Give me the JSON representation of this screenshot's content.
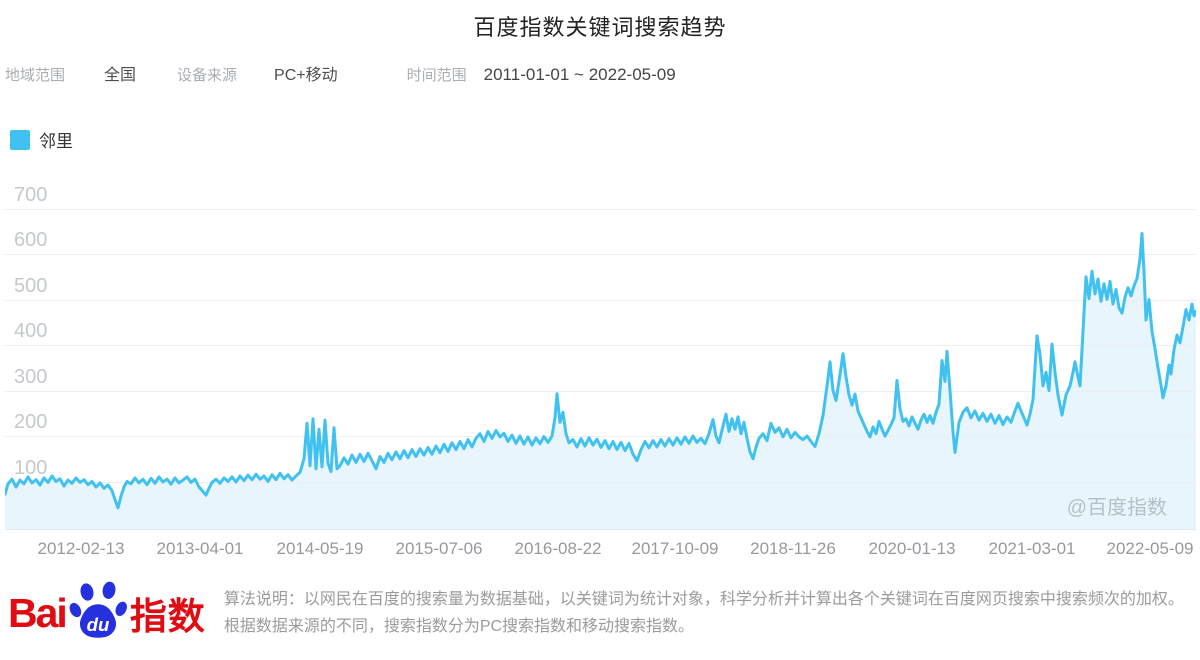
{
  "header": {
    "title": "百度指数关键词搜索趋势"
  },
  "filters": {
    "region_label": "地域范围",
    "region_value": "全国",
    "device_label": "设备来源",
    "device_value": "PC+移动",
    "time_label": "时间范围",
    "time_value": "2011-01-01 ~ 2022-05-09"
  },
  "legend": {
    "label": "邻里",
    "color": "#41C1F0"
  },
  "watermark": "@百度指数",
  "footer": {
    "logo_bai": "Bai",
    "logo_du": "du",
    "logo_suffix": "指数",
    "description": "算法说明：以网民在百度的搜索量为数据基础，以关键词为统计对象，科学分析并计算出各个关键词在百度网页搜索中搜索频次的加权。根据数据来源的不同，搜索指数分为PC搜索指数和移动搜索指数。"
  },
  "chart_data": {
    "type": "area",
    "title": "百度指数关键词搜索趋势",
    "series_name": "邻里",
    "x_axis": {
      "start": "2011-01-01",
      "end": "2022-05-09",
      "tick_labels": [
        "2012-02-13",
        "2013-04-01",
        "2014-05-19",
        "2015-07-06",
        "2016-08-22",
        "2017-10-09",
        "2018-11-26",
        "2020-01-13",
        "2021-03-01",
        "2022-05-09"
      ],
      "tick_x_units": [
        76,
        195,
        315,
        434,
        553,
        670,
        788,
        907,
        1027,
        1145
      ],
      "x_units_range": [
        0,
        1191
      ]
    },
    "y_axis": {
      "ticks": [
        700,
        600,
        500,
        400,
        300,
        200,
        100
      ],
      "min": 0,
      "max": 700,
      "grid": true
    },
    "colors": {
      "line": "#41C1F0",
      "fill": "#E8F5FC",
      "grid": "#EDEEF0"
    },
    "points": [
      [
        0,
        72
      ],
      [
        3,
        95
      ],
      [
        7,
        105
      ],
      [
        11,
        88
      ],
      [
        15,
        103
      ],
      [
        19,
        95
      ],
      [
        23,
        110
      ],
      [
        27,
        97
      ],
      [
        31,
        104
      ],
      [
        35,
        92
      ],
      [
        39,
        108
      ],
      [
        43,
        98
      ],
      [
        47,
        112
      ],
      [
        51,
        100
      ],
      [
        55,
        106
      ],
      [
        59,
        90
      ],
      [
        63,
        103
      ],
      [
        67,
        96
      ],
      [
        71,
        108
      ],
      [
        75,
        98
      ],
      [
        79,
        104
      ],
      [
        83,
        93
      ],
      [
        87,
        100
      ],
      [
        91,
        88
      ],
      [
        95,
        97
      ],
      [
        99,
        85
      ],
      [
        103,
        92
      ],
      [
        107,
        80
      ],
      [
        110,
        60
      ],
      [
        113,
        42
      ],
      [
        116,
        68
      ],
      [
        119,
        88
      ],
      [
        122,
        100
      ],
      [
        126,
        95
      ],
      [
        130,
        108
      ],
      [
        134,
        97
      ],
      [
        138,
        105
      ],
      [
        142,
        93
      ],
      [
        146,
        107
      ],
      [
        150,
        96
      ],
      [
        154,
        110
      ],
      [
        158,
        99
      ],
      [
        162,
        105
      ],
      [
        166,
        94
      ],
      [
        170,
        108
      ],
      [
        174,
        97
      ],
      [
        178,
        103
      ],
      [
        182,
        110
      ],
      [
        186,
        98
      ],
      [
        190,
        105
      ],
      [
        194,
        88
      ],
      [
        198,
        78
      ],
      [
        201,
        70
      ],
      [
        204,
        85
      ],
      [
        207,
        98
      ],
      [
        211,
        105
      ],
      [
        215,
        96
      ],
      [
        219,
        108
      ],
      [
        223,
        100
      ],
      [
        227,
        110
      ],
      [
        231,
        99
      ],
      [
        235,
        112
      ],
      [
        239,
        102
      ],
      [
        243,
        114
      ],
      [
        247,
        104
      ],
      [
        251,
        116
      ],
      [
        255,
        105
      ],
      [
        259,
        112
      ],
      [
        263,
        100
      ],
      [
        267,
        115
      ],
      [
        271,
        104
      ],
      [
        275,
        118
      ],
      [
        279,
        106
      ],
      [
        283,
        115
      ],
      [
        287,
        103
      ],
      [
        291,
        112
      ],
      [
        295,
        120
      ],
      [
        299,
        150
      ],
      [
        302,
        228
      ],
      [
        305,
        135
      ],
      [
        308,
        238
      ],
      [
        311,
        128
      ],
      [
        314,
        215
      ],
      [
        317,
        132
      ],
      [
        320,
        235
      ],
      [
        323,
        140
      ],
      [
        326,
        122
      ],
      [
        329,
        218
      ],
      [
        332,
        128
      ],
      [
        335,
        135
      ],
      [
        339,
        152
      ],
      [
        343,
        138
      ],
      [
        347,
        158
      ],
      [
        351,
        142
      ],
      [
        355,
        160
      ],
      [
        359,
        144
      ],
      [
        363,
        162
      ],
      [
        367,
        146
      ],
      [
        371,
        128
      ],
      [
        375,
        155
      ],
      [
        379,
        142
      ],
      [
        383,
        162
      ],
      [
        387,
        148
      ],
      [
        391,
        165
      ],
      [
        395,
        150
      ],
      [
        399,
        168
      ],
      [
        403,
        152
      ],
      [
        407,
        170
      ],
      [
        411,
        155
      ],
      [
        415,
        172
      ],
      [
        419,
        158
      ],
      [
        423,
        175
      ],
      [
        427,
        160
      ],
      [
        431,
        178
      ],
      [
        435,
        163
      ],
      [
        439,
        182
      ],
      [
        443,
        166
      ],
      [
        447,
        185
      ],
      [
        451,
        170
      ],
      [
        455,
        188
      ],
      [
        459,
        172
      ],
      [
        463,
        192
      ],
      [
        467,
        176
      ],
      [
        471,
        195
      ],
      [
        475,
        205
      ],
      [
        479,
        188
      ],
      [
        483,
        210
      ],
      [
        487,
        195
      ],
      [
        491,
        212
      ],
      [
        495,
        198
      ],
      [
        499,
        206
      ],
      [
        503,
        188
      ],
      [
        507,
        202
      ],
      [
        511,
        184
      ],
      [
        515,
        200
      ],
      [
        519,
        182
      ],
      [
        523,
        198
      ],
      [
        527,
        180
      ],
      [
        531,
        196
      ],
      [
        535,
        183
      ],
      [
        539,
        199
      ],
      [
        543,
        186
      ],
      [
        547,
        200
      ],
      [
        550,
        240
      ],
      [
        552,
        293
      ],
      [
        555,
        230
      ],
      [
        558,
        252
      ],
      [
        561,
        205
      ],
      [
        564,
        185
      ],
      [
        568,
        192
      ],
      [
        572,
        176
      ],
      [
        576,
        194
      ],
      [
        580,
        178
      ],
      [
        584,
        196
      ],
      [
        588,
        180
      ],
      [
        592,
        193
      ],
      [
        596,
        175
      ],
      [
        600,
        190
      ],
      [
        604,
        172
      ],
      [
        608,
        188
      ],
      [
        612,
        170
      ],
      [
        616,
        186
      ],
      [
        620,
        168
      ],
      [
        624,
        184
      ],
      [
        628,
        160
      ],
      [
        632,
        146
      ],
      [
        636,
        170
      ],
      [
        640,
        188
      ],
      [
        644,
        174
      ],
      [
        648,
        190
      ],
      [
        652,
        176
      ],
      [
        656,
        192
      ],
      [
        660,
        178
      ],
      [
        664,
        194
      ],
      [
        668,
        180
      ],
      [
        672,
        196
      ],
      [
        676,
        182
      ],
      [
        680,
        198
      ],
      [
        684,
        184
      ],
      [
        688,
        200
      ],
      [
        692,
        186
      ],
      [
        696,
        195
      ],
      [
        700,
        183
      ],
      [
        704,
        205
      ],
      [
        708,
        236
      ],
      [
        711,
        200
      ],
      [
        714,
        185
      ],
      [
        718,
        222
      ],
      [
        721,
        248
      ],
      [
        724,
        210
      ],
      [
        727,
        238
      ],
      [
        730,
        215
      ],
      [
        733,
        242
      ],
      [
        736,
        205
      ],
      [
        739,
        230
      ],
      [
        742,
        195
      ],
      [
        745,
        165
      ],
      [
        748,
        150
      ],
      [
        751,
        175
      ],
      [
        754,
        195
      ],
      [
        758,
        205
      ],
      [
        762,
        190
      ],
      [
        766,
        228
      ],
      [
        770,
        208
      ],
      [
        774,
        218
      ],
      [
        778,
        198
      ],
      [
        782,
        215
      ],
      [
        786,
        196
      ],
      [
        790,
        208
      ],
      [
        794,
        198
      ],
      [
        798,
        192
      ],
      [
        802,
        200
      ],
      [
        806,
        188
      ],
      [
        810,
        177
      ],
      [
        814,
        205
      ],
      [
        818,
        245
      ],
      [
        822,
        310
      ],
      [
        825,
        363
      ],
      [
        828,
        300
      ],
      [
        831,
        278
      ],
      [
        834,
        320
      ],
      [
        838,
        381
      ],
      [
        841,
        330
      ],
      [
        844,
        290
      ],
      [
        847,
        268
      ],
      [
        850,
        292
      ],
      [
        853,
        255
      ],
      [
        856,
        240
      ],
      [
        859,
        225
      ],
      [
        862,
        210
      ],
      [
        865,
        198
      ],
      [
        868,
        220
      ],
      [
        871,
        205
      ],
      [
        874,
        232
      ],
      [
        877,
        215
      ],
      [
        880,
        200
      ],
      [
        883,
        212
      ],
      [
        886,
        225
      ],
      [
        889,
        240
      ],
      [
        892,
        322
      ],
      [
        895,
        260
      ],
      [
        898,
        232
      ],
      [
        901,
        238
      ],
      [
        904,
        222
      ],
      [
        907,
        242
      ],
      [
        910,
        228
      ],
      [
        913,
        215
      ],
      [
        916,
        235
      ],
      [
        919,
        248
      ],
      [
        922,
        230
      ],
      [
        925,
        245
      ],
      [
        928,
        228
      ],
      [
        931,
        252
      ],
      [
        934,
        270
      ],
      [
        937,
        366
      ],
      [
        940,
        320
      ],
      [
        942,
        386
      ],
      [
        945,
        300
      ],
      [
        948,
        210
      ],
      [
        950,
        164
      ],
      [
        954,
        230
      ],
      [
        958,
        252
      ],
      [
        962,
        262
      ],
      [
        966,
        240
      ],
      [
        970,
        255
      ],
      [
        974,
        235
      ],
      [
        978,
        250
      ],
      [
        982,
        232
      ],
      [
        986,
        248
      ],
      [
        990,
        228
      ],
      [
        994,
        245
      ],
      [
        998,
        225
      ],
      [
        1002,
        242
      ],
      [
        1006,
        230
      ],
      [
        1010,
        255
      ],
      [
        1013,
        272
      ],
      [
        1016,
        255
      ],
      [
        1019,
        240
      ],
      [
        1022,
        224
      ],
      [
        1025,
        248
      ],
      [
        1028,
        280
      ],
      [
        1032,
        420
      ],
      [
        1035,
        380
      ],
      [
        1038,
        310
      ],
      [
        1041,
        340
      ],
      [
        1044,
        300
      ],
      [
        1047,
        402
      ],
      [
        1050,
        340
      ],
      [
        1053,
        290
      ],
      [
        1057,
        246
      ],
      [
        1061,
        290
      ],
      [
        1065,
        310
      ],
      [
        1068,
        340
      ],
      [
        1070,
        363
      ],
      [
        1073,
        330
      ],
      [
        1075,
        310
      ],
      [
        1078,
        430
      ],
      [
        1081,
        550
      ],
      [
        1084,
        502
      ],
      [
        1087,
        562
      ],
      [
        1090,
        512
      ],
      [
        1093,
        545
      ],
      [
        1096,
        496
      ],
      [
        1099,
        535
      ],
      [
        1102,
        500
      ],
      [
        1105,
        540
      ],
      [
        1108,
        490
      ],
      [
        1111,
        522
      ],
      [
        1114,
        482
      ],
      [
        1117,
        470
      ],
      [
        1120,
        505
      ],
      [
        1123,
        526
      ],
      [
        1126,
        508
      ],
      [
        1129,
        530
      ],
      [
        1132,
        546
      ],
      [
        1135,
        590
      ],
      [
        1137,
        645
      ],
      [
        1139,
        560
      ],
      [
        1141,
        455
      ],
      [
        1144,
        500
      ],
      [
        1147,
        430
      ],
      [
        1150,
        392
      ],
      [
        1153,
        350
      ],
      [
        1156,
        312
      ],
      [
        1158,
        284
      ],
      [
        1161,
        310
      ],
      [
        1164,
        356
      ],
      [
        1166,
        336
      ],
      [
        1169,
        390
      ],
      [
        1172,
        422
      ],
      [
        1175,
        405
      ],
      [
        1178,
        440
      ],
      [
        1181,
        478
      ],
      [
        1184,
        455
      ],
      [
        1187,
        490
      ],
      [
        1189,
        464
      ],
      [
        1191,
        474
      ]
    ]
  }
}
